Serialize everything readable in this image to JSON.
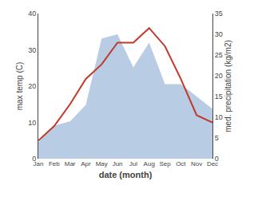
{
  "chart_data": {
    "type": "line",
    "categories": [
      "Jan",
      "Feb",
      "Mar",
      "Apr",
      "May",
      "Jun",
      "Jul",
      "Aug",
      "Sep",
      "Oct",
      "Nov",
      "Dec"
    ],
    "xlabel": "date (month)",
    "ylabel": "max temp (C)",
    "y2label": "med. precipitation (kg/m2)",
    "series": [
      {
        "type": "area",
        "axis": "y2",
        "color": "#b8cce4",
        "values": [
          4,
          8,
          9,
          13,
          29,
          30,
          22,
          28,
          18,
          18,
          15,
          12
        ]
      },
      {
        "type": "line",
        "color": "#c0392b",
        "values": [
          5,
          9,
          15,
          22,
          26,
          32,
          32,
          36,
          31,
          22,
          12,
          10
        ]
      }
    ],
    "ylim": [
      0,
      40
    ],
    "yticks": [
      0,
      10,
      20,
      30,
      40
    ],
    "y2lim": [
      0,
      35
    ],
    "y2ticks": [
      0,
      5,
      10,
      15,
      20,
      25,
      30,
      35
    ],
    "grid": false
  }
}
